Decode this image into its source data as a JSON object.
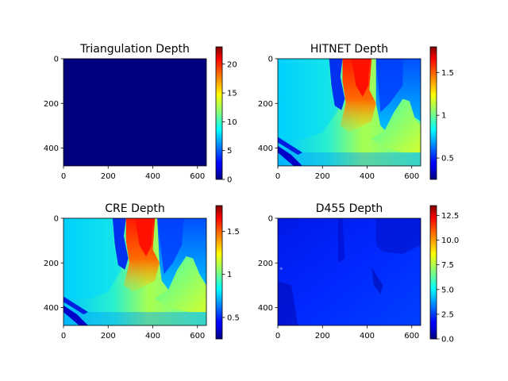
{
  "figure": {
    "background": "#ffffff"
  },
  "chart_data": [
    {
      "type": "heatmap",
      "title": "Triangulation Depth",
      "colormap": "jet",
      "xlim": [
        0,
        640
      ],
      "ylim": [
        480,
        0
      ],
      "xticks": [
        0,
        200,
        400,
        600
      ],
      "yticks": [
        0,
        200,
        400
      ],
      "colorbar": {
        "min": 0,
        "max": 23,
        "ticks": [
          0,
          5,
          10,
          15,
          20
        ]
      },
      "description_value": "uniform value 0 across the image"
    },
    {
      "type": "heatmap",
      "title": "HITNET Depth",
      "colormap": "jet",
      "xlim": [
        0,
        640
      ],
      "ylim": [
        480,
        0
      ],
      "xticks": [
        0,
        200,
        400,
        600
      ],
      "yticks": [
        0,
        200,
        400
      ],
      "colorbar": {
        "min": 0.25,
        "max": 1.8,
        "ticks": [
          0.5,
          1.0,
          1.5
        ]
      }
    },
    {
      "type": "heatmap",
      "title": "CRE Depth",
      "colormap": "jet",
      "xlim": [
        0,
        640
      ],
      "ylim": [
        480,
        0
      ],
      "xticks": [
        0,
        200,
        400,
        600
      ],
      "yticks": [
        0,
        200,
        400
      ],
      "colorbar": {
        "min": 0.25,
        "max": 1.8,
        "ticks": [
          0.5,
          1.0,
          1.5
        ]
      }
    },
    {
      "type": "heatmap",
      "title": "D455 Depth",
      "colormap": "jet",
      "xlim": [
        0,
        640
      ],
      "ylim": [
        480,
        0
      ],
      "xticks": [
        0,
        200,
        400,
        600
      ],
      "yticks": [
        0,
        200,
        400
      ],
      "colorbar": {
        "min": 0,
        "max": 13.5,
        "ticks": [
          0.0,
          2.5,
          5.0,
          7.5,
          10.0,
          12.5
        ],
        "tick_format": "fixed1"
      }
    }
  ]
}
